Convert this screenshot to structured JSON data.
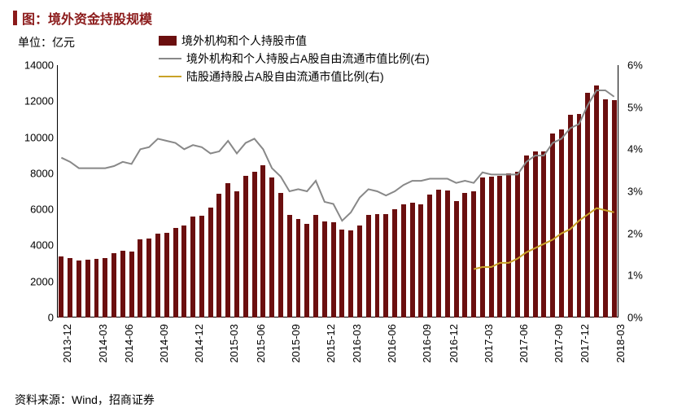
{
  "title": "图：境外资金持股规模",
  "unit_label": "单位：亿元",
  "source": "资料来源：Wind，招商证券",
  "colors": {
    "bar": "#6b0f0f",
    "line_grey": "#888888",
    "line_gold": "#c9a227",
    "axis": "#000000",
    "bg": "#ffffff",
    "title": "#8b1a1a"
  },
  "legend": {
    "series1": "境外机构和个人持股市值",
    "series2": "境外机构和个人持股占A股自由流通市值比例(右)",
    "series3": "陆股通持股占A股自由流通市值比例(右)"
  },
  "chart": {
    "type": "bar+line",
    "y_left": {
      "min": 0,
      "max": 14000,
      "step": 2000
    },
    "y_right": {
      "min": 0,
      "max": 6,
      "step": 1,
      "suffix": "%"
    },
    "x_labels": [
      "2013-12",
      "2014-03",
      "2014-06",
      "2014-09",
      "2014-12",
      "2015-03",
      "2015-06",
      "2015-09",
      "2015-12",
      "2016-03",
      "2016-06",
      "2016-09",
      "2016-12",
      "2017-03",
      "2017-06",
      "2017-09",
      "2017-12",
      "2018-03"
    ],
    "x_label_every": 3,
    "bar_width_ratio": 0.55,
    "bars": [
      3400,
      3300,
      3150,
      3200,
      3250,
      3300,
      3550,
      3700,
      3650,
      4350,
      4400,
      4650,
      4700,
      4950,
      5100,
      5600,
      5650,
      6100,
      6850,
      7450,
      7000,
      7850,
      8100,
      8450,
      7750,
      6900,
      5700,
      5450,
      5200,
      5700,
      5350,
      5300,
      4900,
      4850,
      5100,
      5700,
      5750,
      5750,
      6000,
      6300,
      6350,
      6300,
      6800,
      7100,
      7050,
      6450,
      6900,
      7000,
      7750,
      7800,
      7850,
      8000,
      8100,
      9000,
      9200,
      9200,
      10200,
      10450,
      11250,
      11300,
      12450,
      12850,
      12100,
      12050
    ],
    "line_grey": [
      3.8,
      3.7,
      3.55,
      3.55,
      3.55,
      3.55,
      3.6,
      3.7,
      3.65,
      4.0,
      4.05,
      4.25,
      4.2,
      4.15,
      4.0,
      4.1,
      4.05,
      3.9,
      3.95,
      4.2,
      3.9,
      4.15,
      4.25,
      4.0,
      3.55,
      3.35,
      3.0,
      3.05,
      3.0,
      3.25,
      2.75,
      2.7,
      2.3,
      2.5,
      2.85,
      3.05,
      3.0,
      2.9,
      3.0,
      3.15,
      3.25,
      3.25,
      3.3,
      3.3,
      3.3,
      3.2,
      3.25,
      3.2,
      3.45,
      3.4,
      3.4,
      3.4,
      3.4,
      3.7,
      3.85,
      3.85,
      4.15,
      4.25,
      4.5,
      4.6,
      5.05,
      5.4,
      5.4,
      5.25
    ],
    "line_gold_start_index": 47,
    "line_gold": [
      1.15,
      1.2,
      1.2,
      1.3,
      1.3,
      1.4,
      1.55,
      1.65,
      1.75,
      1.85,
      2.0,
      2.1,
      2.3,
      2.45,
      2.6,
      2.55,
      2.5
    ]
  }
}
